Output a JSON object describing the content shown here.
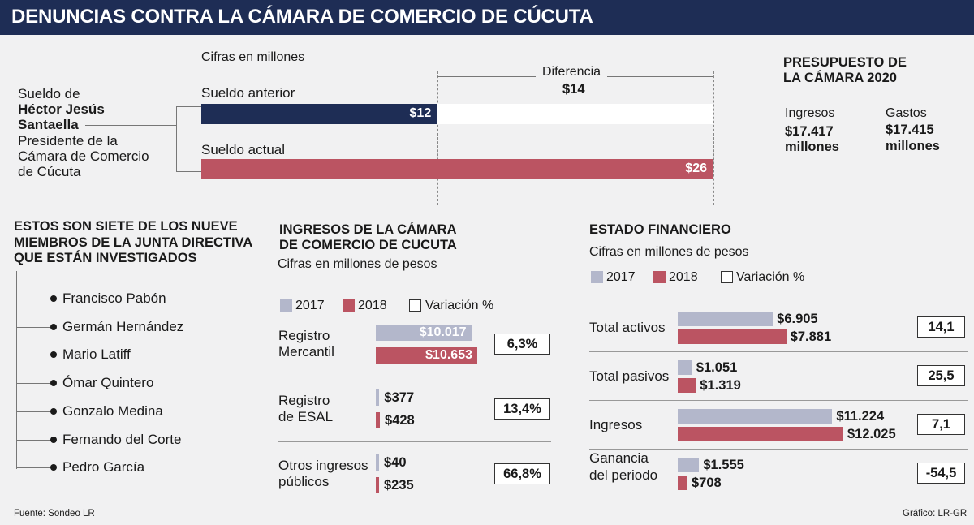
{
  "header": {
    "title": "DENUNCIAS CONTRA LA CÁMARA DE COMERCIO DE CÚCUTA"
  },
  "salary": {
    "units": "Cifras en millones",
    "person_prefix": "Sueldo de",
    "person_name_1": "Héctor Jesús",
    "person_name_2": "Santaella",
    "role_1": "Presidente de la",
    "role_2": "Cámara de Comercio",
    "role_3": "de Cúcuta",
    "diff_label": "Diferencia",
    "diff_value": "$14",
    "prev_label": "Sueldo anterior",
    "curr_label": "Sueldo actual",
    "prev_value_label": "$12",
    "curr_value_label": "$26"
  },
  "budget": {
    "title_1": "PRESUPUESTO DE",
    "title_2": "LA CÁMARA 2020",
    "income_label": "Ingresos",
    "income_value": "$17.417",
    "income_unit": "millones",
    "expense_label": "Gastos",
    "expense_value": "$17.415",
    "expense_unit": "millones"
  },
  "board": {
    "title_1": "ESTOS SON SIETE DE LOS NUEVE",
    "title_2": "MIEMBROS DE LA JUNTA DIRECTIVA",
    "title_3": "QUE ESTÁN INVESTIGADOS",
    "members": [
      "Francisco Pabón",
      "Germán Hernández",
      "Mario Latiff",
      "Ómar Quintero",
      "Gonzalo Medina",
      "Fernando del Corte",
      "Pedro García"
    ]
  },
  "income": {
    "title_1": "INGRESOS DE LA CÁMARA",
    "title_2": "DE COMERCIO DE CUCUTA",
    "units": "Cifras en millones de pesos",
    "legend_2017": "2017",
    "legend_2018": "2018",
    "legend_var": "Variación %",
    "rows": [
      {
        "label_1": "Registro",
        "label_2": "Mercantil",
        "v2017": "$10.017",
        "v2018": "$10.653",
        "var": "6,3%"
      },
      {
        "label_1": "Registro",
        "label_2": "de ESAL",
        "v2017": "$377",
        "v2018": "$428",
        "var": "13,4%"
      },
      {
        "label_1": "Otros ingresos",
        "label_2": "públicos",
        "v2017": "$40",
        "v2018": "$235",
        "var": "66,8%"
      }
    ]
  },
  "financial": {
    "title": "ESTADO FINANCIERO",
    "units": "Cifras en millones de pesos",
    "legend_2017": "2017",
    "legend_2018": "2018",
    "legend_var": "Variación %",
    "rows": [
      {
        "label_1": "Total  activos",
        "label_2": "",
        "v2017": "$6.905",
        "v2018": "$7.881",
        "var": "14,1"
      },
      {
        "label_1": "Total pasivos",
        "label_2": "",
        "v2017": "$1.051",
        "v2018": "$1.319",
        "var": "25,5"
      },
      {
        "label_1": "Ingresos",
        "label_2": "",
        "v2017": "$11.224",
        "v2018": "$12.025",
        "var": "7,1"
      },
      {
        "label_1": "Ganancia",
        "label_2": "del periodo",
        "v2017": "$1.555",
        "v2018": "$708",
        "var": "-54,5"
      }
    ]
  },
  "footer": {
    "source": "Fuente: Sondeo LR",
    "credit": "Gráfico: LR-GR"
  },
  "colors": {
    "navy": "#1e2d55",
    "red": "#bb5462",
    "gray": "#b3b7cb"
  },
  "chart_data": [
    {
      "type": "bar",
      "title": "",
      "units": "Cifras en millones",
      "categories": [
        "Sueldo anterior",
        "Sueldo actual"
      ],
      "values": [
        12,
        26
      ],
      "annotations": [
        {
          "label": "Diferencia",
          "value": 14
        }
      ]
    },
    {
      "type": "bar",
      "title": "INGRESOS DE LA CÁMARA DE COMERCIO DE CUCUTA",
      "units": "Cifras en millones de pesos",
      "categories": [
        "Registro Mercantil",
        "Registro de ESAL",
        "Otros ingresos públicos"
      ],
      "series": [
        {
          "name": "2017",
          "values": [
            10017,
            377,
            40
          ]
        },
        {
          "name": "2018",
          "values": [
            10653,
            428,
            235
          ]
        },
        {
          "name": "Variación %",
          "values": [
            6.3,
            13.4,
            66.8
          ]
        }
      ]
    },
    {
      "type": "bar",
      "title": "ESTADO FINANCIERO",
      "units": "Cifras en millones de pesos",
      "categories": [
        "Total activos",
        "Total pasivos",
        "Ingresos",
        "Ganancia del periodo"
      ],
      "series": [
        {
          "name": "2017",
          "values": [
            6905,
            1051,
            11224,
            1555
          ]
        },
        {
          "name": "2018",
          "values": [
            7881,
            1319,
            12025,
            708
          ]
        },
        {
          "name": "Variación %",
          "values": [
            14.1,
            25.5,
            7.1,
            -54.5
          ]
        }
      ]
    }
  ]
}
